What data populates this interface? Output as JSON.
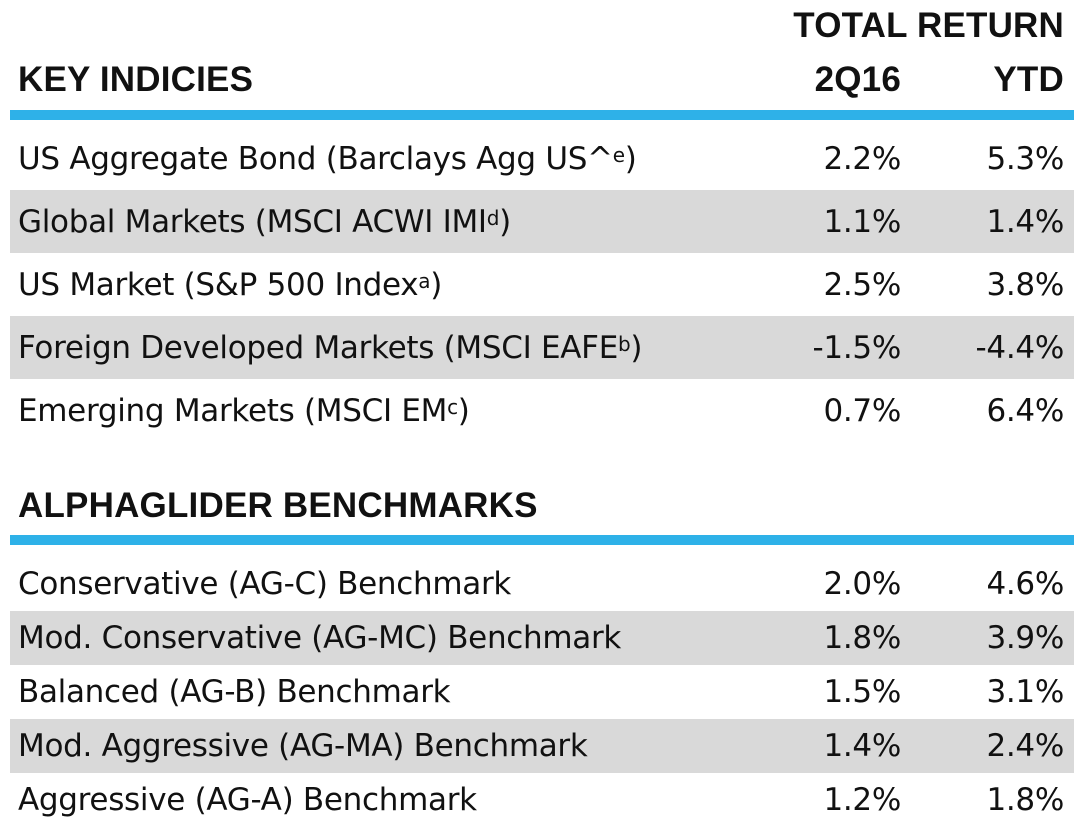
{
  "colors": {
    "accent_rule": "#2eb1e8",
    "row_shade": "#d9d9d9",
    "text": "#111111"
  },
  "header": {
    "total_return": "TOTAL RETURN",
    "section_title": "KEY INDICIES",
    "col_q": "2Q16",
    "col_ytd": "YTD"
  },
  "key_indices": [
    {
      "label": "US Aggregate Bond (Barclays Agg US^",
      "sup": "e",
      "close": ")",
      "q2": "2.2%",
      "ytd": "5.3%",
      "shaded": false
    },
    {
      "label": "Global Markets (MSCI ACWI IMI",
      "sup": "d",
      "close": ")",
      "q2": "1.1%",
      "ytd": "1.4%",
      "shaded": true
    },
    {
      "label": "US Market (S&P 500 Index",
      "sup": "a",
      "close": ")",
      "q2": "2.5%",
      "ytd": "3.8%",
      "shaded": false
    },
    {
      "label": "Foreign Developed Markets (MSCI EAFE",
      "sup": "b",
      "close": ")",
      "q2": "-1.5%",
      "ytd": "-4.4%",
      "shaded": true
    },
    {
      "label": "Emerging Markets (MSCI EM",
      "sup": "c",
      "close": ")",
      "q2": "0.7%",
      "ytd": "6.4%",
      "shaded": false
    }
  ],
  "benchmarks_title": "ALPHAGLIDER BENCHMARKS",
  "benchmarks": [
    {
      "label": "Conservative (AG-C) Benchmark",
      "q2": "2.0%",
      "ytd": "4.6%",
      "shaded": false
    },
    {
      "label": "Mod. Conservative (AG-MC) Benchmark",
      "q2": "1.8%",
      "ytd": "3.9%",
      "shaded": true
    },
    {
      "label": "Balanced (AG-B) Benchmark",
      "q2": "1.5%",
      "ytd": "3.1%",
      "shaded": false
    },
    {
      "label": "Mod. Aggressive (AG-MA) Benchmark",
      "q2": "1.4%",
      "ytd": "2.4%",
      "shaded": true
    },
    {
      "label": "Aggressive (AG-A) Benchmark",
      "q2": "1.2%",
      "ytd": "1.8%",
      "shaded": false
    }
  ]
}
